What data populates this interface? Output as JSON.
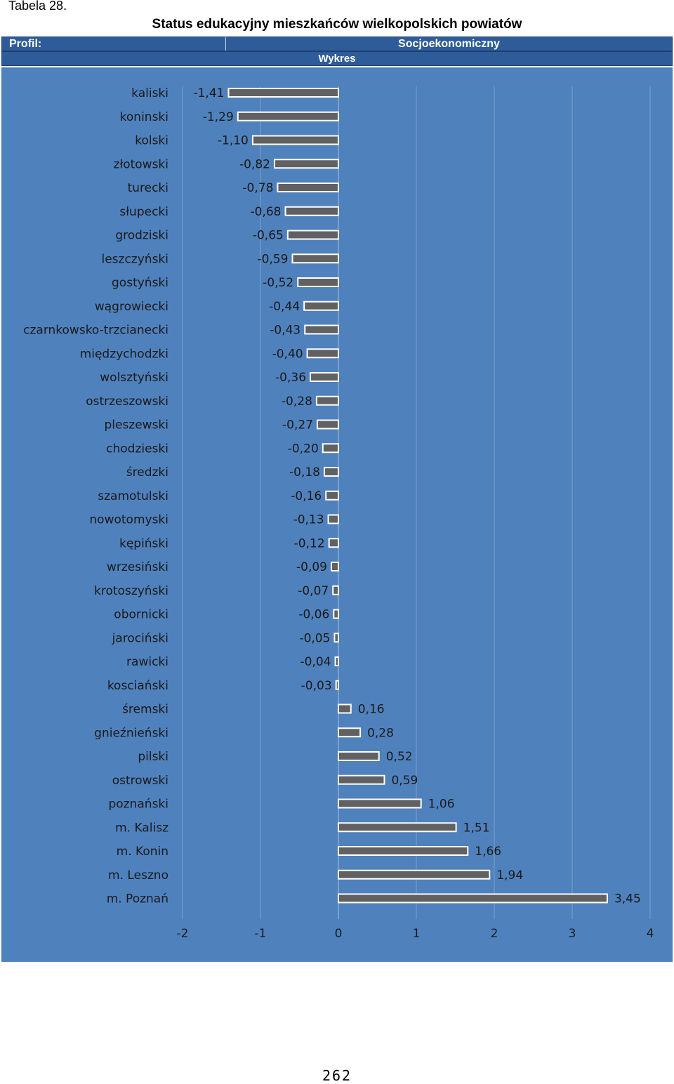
{
  "header": {
    "table_label": "Tabela 28.",
    "title": "Status edukacyjny mieszkańców wielkopolskich powiatów",
    "profile_label": "Profil:",
    "profile_value": "Socjoekonomiczny",
    "section_label": "Wykres"
  },
  "colors": {
    "panel_bg": "#4f81bd",
    "header_bg": "#2e5c9a",
    "bar_fill": "#616161",
    "bar_border": "#ffffff",
    "gridline": "#7f9fc9",
    "label_text": "#1a1a1a"
  },
  "chart_data": {
    "type": "bar",
    "orientation": "horizontal",
    "title": "",
    "xlabel": "",
    "ylabel": "",
    "xlim": [
      -2,
      4
    ],
    "xticks": [
      "-2",
      "-1",
      "0",
      "1",
      "2",
      "3",
      "4"
    ],
    "grid": true,
    "legend": "none",
    "categories": [
      "kaliski",
      "koninski",
      "kolski",
      "złotowski",
      "turecki",
      "słupecki",
      "grodziski",
      "leszczyński",
      "gostyński",
      "wągrowiecki",
      "czarnkowsko-trzcianecki",
      "międzychodzki",
      "wolsztyński",
      "ostrzeszowski",
      "pleszewski",
      "chodzieski",
      "średzki",
      "szamotulski",
      "nowotomyski",
      "kępiński",
      "wrzesiński",
      "krotoszyński",
      "obornicki",
      "jarociński",
      "rawicki",
      "kosciański",
      "śremski",
      "gnieźnieński",
      "pilski",
      "ostrowski",
      "poznański",
      "m. Kalisz",
      "m. Konin",
      "m. Leszno",
      "m. Poznań"
    ],
    "values": [
      -1.41,
      -1.29,
      -1.1,
      -0.82,
      -0.78,
      -0.68,
      -0.65,
      -0.59,
      -0.52,
      -0.44,
      -0.43,
      -0.4,
      -0.36,
      -0.28,
      -0.27,
      -0.2,
      -0.18,
      -0.16,
      -0.13,
      -0.12,
      -0.09,
      -0.07,
      -0.06,
      -0.05,
      -0.04,
      -0.03,
      0.16,
      0.28,
      0.52,
      0.59,
      1.06,
      1.51,
      1.66,
      1.94,
      3.45
    ],
    "value_labels": [
      "-1,41",
      "-1,29",
      "-1,10",
      "-0,82",
      "-0,78",
      "-0,68",
      "-0,65",
      "-0,59",
      "-0,52",
      "-0,44",
      "-0,43",
      "-0,40",
      "-0,36",
      "-0,28",
      "-0,27",
      "-0,20",
      "-0,18",
      "-0,16",
      "-0,13",
      "-0,12",
      "-0,09",
      "-0,07",
      "-0,06",
      "-0,05",
      "-0,04",
      "-0,03",
      "0,16",
      "0,28",
      "0,52",
      "0,59",
      "1,06",
      "1,51",
      "1,66",
      "1,94",
      "3,45"
    ]
  },
  "footer": {
    "page_number": "262"
  }
}
